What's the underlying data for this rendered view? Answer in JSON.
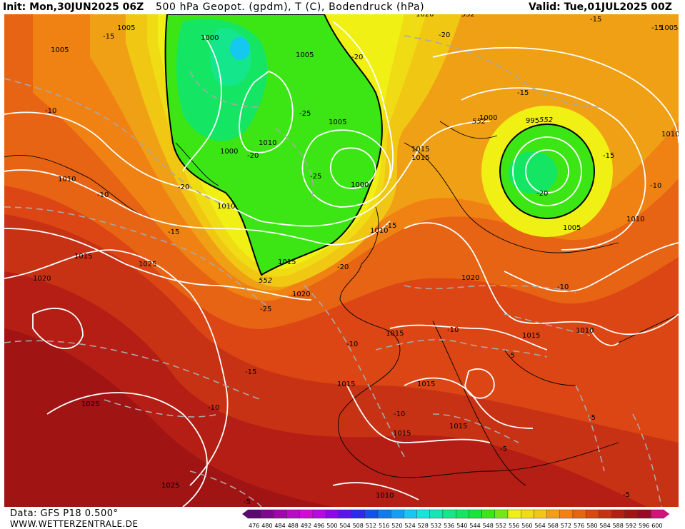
{
  "header": {
    "init": "Init: Mon,30JUN2025 06Z",
    "title": "500 hPa Geopot. (gpdm), T (C), Bodendruck (hPa)",
    "valid": "Valid: Tue,01JUL2025 00Z"
  },
  "footer": {
    "source": "Data: GFS P18 0.500°",
    "site": "WWW.WETTERZENTRALE.DE"
  },
  "colorbar": {
    "ticks": [
      "476",
      "480",
      "484",
      "488",
      "492",
      "496",
      "500",
      "504",
      "508",
      "512",
      "516",
      "520",
      "524",
      "528",
      "532",
      "536",
      "540",
      "544",
      "548",
      "552",
      "556",
      "560",
      "564",
      "568",
      "572",
      "576",
      "580",
      "584",
      "588",
      "592",
      "596",
      "600"
    ],
    "colors": [
      "#5a0a6e",
      "#7a0a8a",
      "#9b0aa6",
      "#bb0ac2",
      "#d60ad8",
      "#b30ae6",
      "#8a0af0",
      "#5a14f0",
      "#2a2af0",
      "#1450f0",
      "#1478f0",
      "#14a0f0",
      "#14c8f0",
      "#14e6dc",
      "#14e6b4",
      "#14e68c",
      "#14e664",
      "#14e63c",
      "#3ce614",
      "#78e614",
      "#f0f014",
      "#f0dc14",
      "#f0c814",
      "#f0a014",
      "#f08214",
      "#e66414",
      "#dc4614",
      "#c83214",
      "#b41e14",
      "#a01414",
      "#960a28",
      "#d2147a"
    ]
  },
  "geopotential_labels": [
    {
      "text": "552"
    },
    {
      "text": "552"
    },
    {
      "text": "552"
    },
    {
      "text": "552"
    }
  ],
  "pressure_labels": [
    {
      "text": "1005"
    },
    {
      "text": "1000"
    },
    {
      "text": "1005"
    },
    {
      "text": "1005"
    },
    {
      "text": "1010"
    },
    {
      "text": "1000"
    },
    {
      "text": "1010"
    },
    {
      "text": "1005"
    },
    {
      "text": "1000"
    },
    {
      "text": "1010"
    },
    {
      "text": "1015"
    },
    {
      "text": "1020"
    },
    {
      "text": "1015"
    },
    {
      "text": "1025"
    },
    {
      "text": "1020"
    },
    {
      "text": "1010"
    },
    {
      "text": "1015"
    },
    {
      "text": "1015"
    },
    {
      "text": "1000"
    },
    {
      "text": "1020"
    },
    {
      "text": "995"
    },
    {
      "text": "1005"
    },
    {
      "text": "1010"
    },
    {
      "text": "1005"
    },
    {
      "text": "1020"
    },
    {
      "text": "1015"
    },
    {
      "text": "1015"
    },
    {
      "text": "1010"
    },
    {
      "text": "1015"
    },
    {
      "text": "1015"
    },
    {
      "text": "1025"
    },
    {
      "text": "1015"
    },
    {
      "text": "1015"
    },
    {
      "text": "1025"
    },
    {
      "text": "1010"
    },
    {
      "text": "1010"
    }
  ],
  "temperature_labels": [
    {
      "text": "-15"
    },
    {
      "text": "-20"
    },
    {
      "text": "-15"
    },
    {
      "text": "-10"
    },
    {
      "text": "-25"
    },
    {
      "text": "-20"
    },
    {
      "text": "-20"
    },
    {
      "text": "-25"
    },
    {
      "text": "-20"
    },
    {
      "text": "-10"
    },
    {
      "text": "-15"
    },
    {
      "text": "-20"
    },
    {
      "text": "-15"
    },
    {
      "text": "-15"
    },
    {
      "text": "-20"
    },
    {
      "text": "-15"
    },
    {
      "text": "-25"
    },
    {
      "text": "-10"
    },
    {
      "text": "-10"
    },
    {
      "text": "-10"
    },
    {
      "text": "-10"
    },
    {
      "text": "-15"
    },
    {
      "text": "-5"
    },
    {
      "text": "-10"
    },
    {
      "text": "-10"
    },
    {
      "text": "-15"
    },
    {
      "text": "-5"
    },
    {
      "text": "-5"
    },
    {
      "text": "-5"
    },
    {
      "text": "-5"
    }
  ]
}
